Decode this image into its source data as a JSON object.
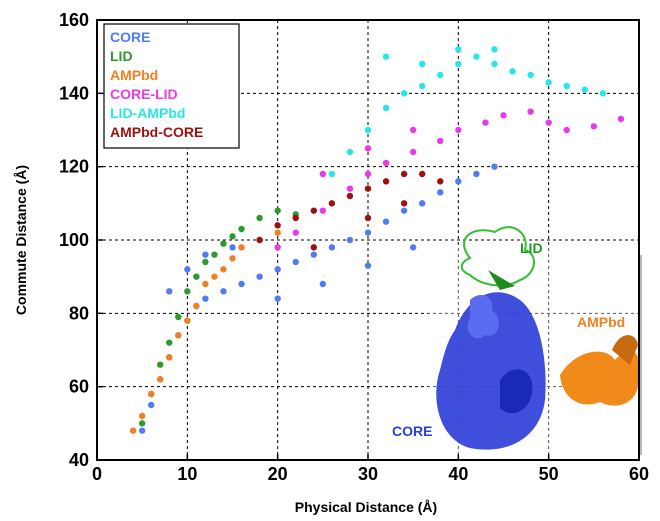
{
  "chart_data": {
    "type": "scatter",
    "title": "",
    "xlabel": "Physical Distance (Å)",
    "ylabel": "Commute Distance (Å)",
    "xlim": [
      0,
      60
    ],
    "ylim": [
      40,
      160
    ],
    "xticks": [
      0,
      10,
      20,
      30,
      40,
      50,
      60
    ],
    "yticks": [
      40,
      60,
      80,
      100,
      120,
      140,
      160
    ],
    "grid": true,
    "legend_position": "top-left",
    "series": [
      {
        "name": "CORE",
        "color": "#4f7cf0",
        "points": [
          [
            5,
            48
          ],
          [
            6,
            55
          ],
          [
            7,
            62
          ],
          [
            8,
            68
          ],
          [
            9,
            74
          ],
          [
            10,
            78
          ],
          [
            11,
            82
          ],
          [
            12,
            84
          ],
          [
            14,
            86
          ],
          [
            16,
            88
          ],
          [
            18,
            90
          ],
          [
            20,
            92
          ],
          [
            22,
            94
          ],
          [
            24,
            96
          ],
          [
            26,
            98
          ],
          [
            28,
            100
          ],
          [
            30,
            102
          ],
          [
            32,
            105
          ],
          [
            34,
            108
          ],
          [
            36,
            110
          ],
          [
            38,
            113
          ],
          [
            40,
            116
          ],
          [
            42,
            118
          ],
          [
            44,
            120
          ],
          [
            8,
            86
          ],
          [
            10,
            92
          ],
          [
            12,
            96
          ],
          [
            15,
            98
          ],
          [
            20,
            84
          ],
          [
            25,
            88
          ],
          [
            30,
            93
          ],
          [
            35,
            98
          ]
        ]
      },
      {
        "name": "LID",
        "color": "#2d9a2d",
        "points": [
          [
            5,
            50
          ],
          [
            6,
            58
          ],
          [
            7,
            66
          ],
          [
            8,
            72
          ],
          [
            9,
            79
          ],
          [
            10,
            86
          ],
          [
            11,
            90
          ],
          [
            12,
            94
          ],
          [
            13,
            96
          ],
          [
            14,
            99
          ],
          [
            15,
            101
          ],
          [
            16,
            103
          ],
          [
            18,
            106
          ],
          [
            20,
            108
          ],
          [
            22,
            107
          ]
        ]
      },
      {
        "name": "AMPbd",
        "color": "#f08020",
        "points": [
          [
            4,
            48
          ],
          [
            5,
            52
          ],
          [
            6,
            58
          ],
          [
            7,
            62
          ],
          [
            8,
            68
          ],
          [
            9,
            74
          ],
          [
            10,
            78
          ],
          [
            11,
            82
          ],
          [
            12,
            88
          ],
          [
            13,
            90
          ],
          [
            14,
            92
          ],
          [
            15,
            95
          ],
          [
            16,
            98
          ],
          [
            18,
            100
          ],
          [
            20,
            102
          ]
        ]
      },
      {
        "name": "CORE-LID",
        "color": "#e83ae8",
        "points": [
          [
            20,
            98
          ],
          [
            22,
            102
          ],
          [
            25,
            108
          ],
          [
            28,
            114
          ],
          [
            30,
            118
          ],
          [
            32,
            121
          ],
          [
            35,
            124
          ],
          [
            38,
            127
          ],
          [
            40,
            130
          ],
          [
            43,
            132
          ],
          [
            45,
            134
          ],
          [
            48,
            135
          ],
          [
            50,
            132
          ],
          [
            52,
            130
          ],
          [
            55,
            131
          ],
          [
            58,
            133
          ],
          [
            25,
            118
          ],
          [
            30,
            125
          ],
          [
            35,
            130
          ]
        ]
      },
      {
        "name": "LID-AMPbd",
        "color": "#26e6e8",
        "points": [
          [
            26,
            118
          ],
          [
            28,
            124
          ],
          [
            30,
            130
          ],
          [
            32,
            136
          ],
          [
            34,
            140
          ],
          [
            36,
            142
          ],
          [
            38,
            145
          ],
          [
            40,
            148
          ],
          [
            42,
            150
          ],
          [
            44,
            148
          ],
          [
            46,
            146
          ],
          [
            48,
            145
          ],
          [
            50,
            143
          ],
          [
            52,
            142
          ],
          [
            54,
            141
          ],
          [
            56,
            140
          ],
          [
            32,
            150
          ],
          [
            36,
            148
          ],
          [
            40,
            152
          ],
          [
            44,
            152
          ]
        ]
      },
      {
        "name": "AMPbd-CORE",
        "color": "#9e1010",
        "points": [
          [
            18,
            100
          ],
          [
            20,
            104
          ],
          [
            22,
            106
          ],
          [
            24,
            108
          ],
          [
            26,
            110
          ],
          [
            28,
            112
          ],
          [
            30,
            114
          ],
          [
            32,
            116
          ],
          [
            34,
            118
          ],
          [
            36,
            118
          ],
          [
            38,
            116
          ],
          [
            24,
            98
          ],
          [
            30,
            106
          ],
          [
            34,
            110
          ]
        ]
      }
    ],
    "annotations": [
      {
        "text": "LID",
        "color": "#1f9a1f"
      },
      {
        "text": "AMPbd",
        "color": "#f08020"
      },
      {
        "text": "CORE",
        "color": "#2a3fd0"
      }
    ]
  }
}
